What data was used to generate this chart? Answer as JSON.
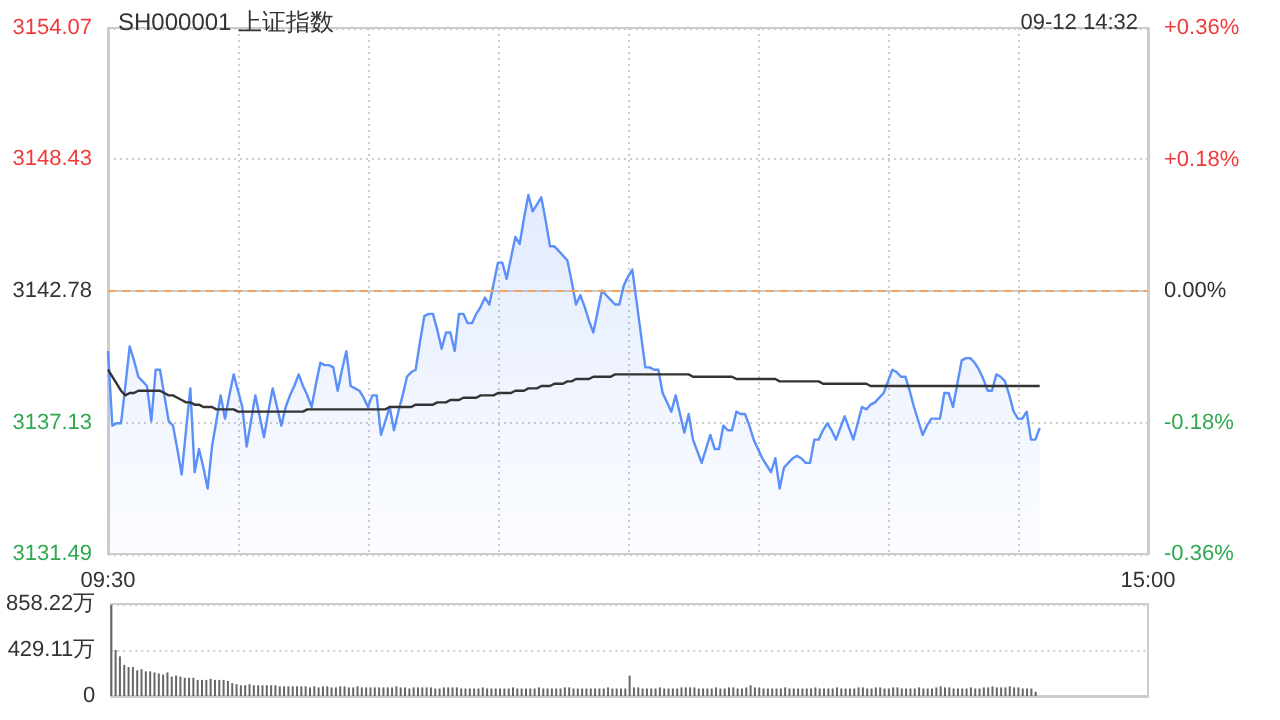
{
  "chart_data": [
    {
      "type": "line",
      "title": "SH000001 上证指数",
      "annotations": [
        "09-12 14:32"
      ],
      "categories": [
        "09:30",
        null,
        null,
        null,
        null,
        null,
        null,
        null,
        null,
        null,
        null,
        null,
        null,
        null,
        null,
        null,
        null,
        null,
        null,
        null,
        null,
        null,
        null,
        null,
        null,
        null,
        null,
        null,
        null,
        null,
        null,
        null,
        null,
        null,
        null,
        null,
        null,
        null,
        null,
        null,
        null,
        null,
        null,
        null,
        null,
        null,
        null,
        null,
        null,
        null,
        null,
        null,
        null,
        null,
        null,
        null,
        null,
        null,
        null,
        null,
        null,
        null,
        null,
        null,
        null,
        null,
        null,
        null,
        null,
        null,
        null,
        null,
        null,
        null,
        null,
        null,
        null,
        null,
        null,
        null,
        null,
        null,
        null,
        null,
        null,
        null,
        null,
        null,
        null,
        null,
        null,
        null,
        null,
        null,
        null,
        null,
        null,
        null,
        null,
        null,
        null,
        null,
        null,
        null,
        null,
        null,
        null,
        null,
        null,
        null,
        null,
        null,
        null,
        null,
        null,
        null,
        null,
        null,
        null,
        null,
        null,
        null,
        null,
        null,
        null,
        null,
        null,
        null,
        null,
        null,
        null,
        null,
        null,
        null,
        null,
        null,
        null,
        null,
        null,
        null,
        null,
        null,
        null,
        null,
        null,
        null,
        null,
        null,
        null,
        null,
        null,
        null,
        null,
        null,
        null,
        null,
        null,
        null,
        null,
        null,
        null,
        null,
        null,
        null,
        null,
        null,
        null,
        null,
        null,
        null,
        null,
        null,
        null,
        null,
        null,
        null,
        null,
        null,
        null,
        null,
        null,
        null,
        null,
        null,
        null,
        null,
        null,
        null,
        null,
        null,
        null,
        null,
        null,
        null,
        null,
        null,
        null,
        null,
        null,
        null,
        null,
        null,
        null,
        null,
        null,
        null,
        null,
        null,
        null,
        null,
        null,
        null,
        null,
        null,
        null,
        null,
        null,
        null,
        null,
        null,
        null,
        null,
        null,
        null,
        null,
        null,
        null,
        null,
        null,
        null,
        null,
        null,
        null,
        null,
        null,
        null,
        null,
        null,
        null,
        null,
        "15:00"
      ],
      "ylim": [
        3131.49,
        3154.07
      ],
      "yticks": [
        3131.49,
        3137.13,
        3142.78,
        3148.43,
        3154.07
      ],
      "y2lim": [
        -0.36,
        0.36
      ],
      "y2ticks": [
        {
          "value": -0.36,
          "label": "-0.36%"
        },
        {
          "value": -0.18,
          "label": "-0.18%"
        },
        {
          "value": 0,
          "label": "0.00%"
        },
        {
          "value": 0.18,
          "label": "+0.18%"
        },
        {
          "value": 0.36,
          "label": "+0.36%"
        }
      ],
      "grid": true,
      "marker": "none",
      "ref_lines": [
        {
          "axis": "y",
          "value": 3142.78,
          "color": "#f4a460",
          "line_style": "dashed"
        }
      ],
      "series": [
        {
          "type": "area",
          "color": "#5b8ff9",
          "values": [
            3140.2,
            3137.0,
            3137.1,
            3137.1,
            3138.7,
            3140.4,
            3139.8,
            3139.1,
            3138.9,
            3138.7,
            3137.2,
            3139.4,
            3139.4,
            3138.3,
            3137.2,
            3137.0,
            3136.0,
            3134.9,
            3136.8,
            3138.6,
            3135.0,
            3136.0,
            3135.2,
            3134.3,
            3136.1,
            3137.2,
            3138.3,
            3137.3,
            3138.3,
            3139.2,
            3138.5,
            3137.8,
            3136.1,
            3137.2,
            3138.3,
            3137.4,
            3136.5,
            3137.6,
            3138.6,
            3137.8,
            3137.0,
            3137.8,
            3138.3,
            3138.7,
            3139.2,
            3138.7,
            3138.3,
            3137.8,
            3138.8,
            3139.7,
            3139.6,
            3139.6,
            3139.5,
            3138.5,
            3139.4,
            3140.2,
            3138.7,
            3138.6,
            3138.5,
            3138.2,
            3137.8,
            3138.3,
            3138.3,
            3136.6,
            3137.2,
            3137.8,
            3136.8,
            3137.6,
            3138.3,
            3139.1,
            3139.3,
            3139.4,
            3140.6,
            3141.7,
            3141.8,
            3141.8,
            3141.1,
            3140.3,
            3141.0,
            3141.0,
            3140.2,
            3141.8,
            3141.8,
            3141.4,
            3141.4,
            3141.8,
            3142.1,
            3142.5,
            3142.2,
            3143.1,
            3144.0,
            3144.0,
            3143.3,
            3144.2,
            3145.1,
            3144.8,
            3145.9,
            3146.9,
            3146.2,
            3146.5,
            3146.8,
            3145.8,
            3144.7,
            3144.7,
            3144.5,
            3144.3,
            3144.1,
            3143.2,
            3142.2,
            3142.6,
            3142.1,
            3141.5,
            3141.0,
            3141.9,
            3142.8,
            3142.6,
            3142.4,
            3142.2,
            3142.2,
            3143.0,
            3143.4,
            3143.7,
            3142.3,
            3140.9,
            3139.5,
            3139.5,
            3139.4,
            3139.4,
            3138.4,
            3138.0,
            3137.6,
            3138.3,
            3137.5,
            3136.7,
            3137.5,
            3136.4,
            3135.9,
            3135.4,
            3136.0,
            3136.6,
            3136.0,
            3136.0,
            3137.0,
            3136.8,
            3136.8,
            3137.6,
            3137.5,
            3137.5,
            3137.0,
            3136.4,
            3136.0,
            3135.6,
            3135.3,
            3135.0,
            3135.6,
            3134.3,
            3135.2,
            3135.4,
            3135.6,
            3135.7,
            3135.6,
            3135.4,
            3135.4,
            3136.4,
            3136.4,
            3136.8,
            3137.1,
            3136.8,
            3136.4,
            3136.9,
            3137.4,
            3136.9,
            3136.4,
            3137.1,
            3137.8,
            3137.7,
            3137.9,
            3138.0,
            3138.2,
            3138.4,
            3138.9,
            3139.4,
            3139.3,
            3139.1,
            3139.1,
            3138.5,
            3137.8,
            3137.2,
            3136.6,
            3137.0,
            3137.3,
            3137.3,
            3137.3,
            3138.4,
            3138.4,
            3137.8,
            3138.8,
            3139.8,
            3139.9,
            3139.9,
            3139.7,
            3139.4,
            3139.0,
            3138.5,
            3138.5,
            3139.2,
            3139.1,
            3138.9,
            3138.3,
            3137.6,
            3137.3,
            3137.3,
            3137.6,
            3136.4,
            3136.4,
            3136.9,
            null,
            null,
            null,
            null,
            null,
            null,
            null,
            null,
            null,
            null,
            null,
            null,
            null,
            null,
            null,
            null,
            null,
            null,
            null,
            null,
            null,
            null,
            null,
            null,
            null
          ]
        },
        {
          "type": "line",
          "color": "#333333",
          "values": [
            3139.4,
            3139.1,
            3138.8,
            3138.5,
            3138.3,
            3138.4,
            3138.4,
            3138.5,
            3138.5,
            3138.5,
            3138.5,
            3138.5,
            3138.5,
            3138.4,
            3138.3,
            3138.3,
            3138.2,
            3138.1,
            3138.0,
            3138.0,
            3137.9,
            3137.9,
            3137.8,
            3137.8,
            3137.8,
            3137.7,
            3137.7,
            3137.7,
            3137.7,
            3137.7,
            3137.6,
            3137.6,
            3137.6,
            3137.6,
            3137.6,
            3137.6,
            3137.6,
            3137.6,
            3137.6,
            3137.6,
            3137.6,
            3137.6,
            3137.6,
            3137.6,
            3137.6,
            3137.6,
            3137.7,
            3137.7,
            3137.7,
            3137.7,
            3137.7,
            3137.7,
            3137.7,
            3137.7,
            3137.7,
            3137.7,
            3137.7,
            3137.7,
            3137.7,
            3137.7,
            3137.7,
            3137.7,
            3137.7,
            3137.7,
            3137.7,
            3137.8,
            3137.8,
            3137.8,
            3137.8,
            3137.8,
            3137.8,
            3137.9,
            3137.9,
            3137.9,
            3137.9,
            3137.9,
            3138.0,
            3138.0,
            3138.0,
            3138.1,
            3138.1,
            3138.1,
            3138.2,
            3138.2,
            3138.2,
            3138.2,
            3138.3,
            3138.3,
            3138.3,
            3138.3,
            3138.4,
            3138.4,
            3138.4,
            3138.4,
            3138.5,
            3138.5,
            3138.5,
            3138.6,
            3138.6,
            3138.6,
            3138.7,
            3138.7,
            3138.7,
            3138.8,
            3138.8,
            3138.8,
            3138.9,
            3138.9,
            3139.0,
            3139.0,
            3139.0,
            3139.0,
            3139.1,
            3139.1,
            3139.1,
            3139.1,
            3139.1,
            3139.2,
            3139.2,
            3139.2,
            3139.2,
            3139.2,
            3139.2,
            3139.2,
            3139.2,
            3139.2,
            3139.2,
            3139.2,
            3139.2,
            3139.2,
            3139.2,
            3139.2,
            3139.2,
            3139.2,
            3139.2,
            3139.1,
            3139.1,
            3139.1,
            3139.1,
            3139.1,
            3139.1,
            3139.1,
            3139.1,
            3139.1,
            3139.1,
            3139.0,
            3139.0,
            3139.0,
            3139.0,
            3139.0,
            3139.0,
            3139.0,
            3139.0,
            3139.0,
            3139.0,
            3138.9,
            3138.9,
            3138.9,
            3138.9,
            3138.9,
            3138.9,
            3138.9,
            3138.9,
            3138.9,
            3138.9,
            3138.8,
            3138.8,
            3138.8,
            3138.8,
            3138.8,
            3138.8,
            3138.8,
            3138.8,
            3138.8,
            3138.8,
            3138.8,
            3138.7,
            3138.7,
            3138.7,
            3138.7,
            3138.7,
            3138.7,
            3138.7,
            3138.7,
            3138.7,
            3138.7,
            3138.7,
            3138.7,
            3138.7,
            3138.7,
            3138.7,
            3138.7,
            3138.7,
            3138.7,
            3138.7,
            3138.7,
            3138.7,
            3138.7,
            3138.7,
            3138.7,
            3138.7,
            3138.7,
            3138.7,
            3138.7,
            3138.7,
            3138.7,
            3138.7,
            3138.7,
            3138.7,
            3138.7,
            3138.7,
            3138.7,
            3138.7,
            3138.7,
            3138.7,
            3138.7,
            null,
            null,
            null,
            null,
            null,
            null,
            null,
            null,
            null,
            null,
            null,
            null,
            null,
            null,
            null,
            null,
            null,
            null,
            null,
            null,
            null,
            null,
            null,
            null,
            null
          ]
        }
      ]
    },
    {
      "type": "bar",
      "color": "#666666",
      "ylim": [
        0,
        858.22
      ],
      "categories": [
        null,
        null,
        null,
        null,
        null,
        null,
        null,
        null,
        null,
        null,
        null,
        null,
        null,
        null,
        null,
        null,
        null,
        null,
        null,
        null,
        null,
        null,
        null,
        null,
        null,
        null,
        null,
        null,
        null,
        null,
        null,
        null,
        null,
        null,
        null,
        null,
        null,
        null,
        null,
        null,
        null,
        null,
        null,
        null,
        null,
        null,
        null,
        null,
        null,
        null,
        null,
        null,
        null,
        null,
        null,
        null,
        null,
        null,
        null,
        null,
        null,
        null,
        null,
        null,
        null,
        null,
        null,
        null,
        null,
        null,
        null,
        null,
        null,
        null,
        null,
        null,
        null,
        null,
        null,
        null,
        null,
        null,
        null,
        null,
        null,
        null,
        null,
        null,
        null,
        null,
        null,
        null,
        null,
        null,
        null,
        null,
        null,
        null,
        null,
        null,
        null,
        null,
        null,
        null,
        null,
        null,
        null,
        null,
        null,
        null,
        null,
        null,
        null,
        null,
        null,
        null,
        null,
        null,
        null,
        null,
        null,
        null,
        null,
        null,
        null,
        null,
        null,
        null,
        null,
        null,
        null,
        null,
        null,
        null,
        null,
        null,
        null,
        null,
        null,
        null,
        null,
        null,
        null,
        null,
        null,
        null,
        null,
        null,
        null,
        null,
        null,
        null,
        null,
        null,
        null,
        null,
        null,
        null,
        null,
        null,
        null,
        null,
        null,
        null,
        null,
        null,
        null,
        null,
        null,
        null,
        null,
        null,
        null,
        null,
        null,
        null,
        null,
        null,
        null,
        null,
        null,
        null,
        null,
        null,
        null,
        null,
        null,
        null,
        null,
        null,
        null,
        null,
        null,
        null,
        null,
        null,
        null,
        null,
        null,
        null,
        null,
        null,
        null,
        null,
        null,
        null,
        null,
        null,
        null,
        null,
        null,
        null,
        null,
        null,
        null,
        null,
        null,
        null,
        null,
        null,
        null,
        null,
        null,
        null,
        null,
        null,
        null,
        null,
        null,
        null,
        null,
        null,
        null,
        null,
        null,
        null,
        null,
        null,
        null,
        null,
        null
      ],
      "yticks": [
        0,
        {
          "value": 429.11,
          "label": "429.11万"
        },
        {
          "value": 858.22,
          "label": "858.22万"
        }
      ],
      "tick_labels": "y",
      "grid": "y",
      "values": [
        850,
        430,
        370,
        290,
        270,
        270,
        240,
        250,
        230,
        230,
        220,
        210,
        200,
        220,
        180,
        190,
        180,
        170,
        170,
        170,
        150,
        150,
        150,
        160,
        150,
        150,
        150,
        140,
        120,
        110,
        100,
        100,
        110,
        100,
        100,
        100,
        100,
        100,
        100,
        90,
        90,
        90,
        90,
        90,
        90,
        90,
        80,
        90,
        80,
        90,
        90,
        80,
        80,
        90,
        90,
        80,
        80,
        90,
        80,
        80,
        80,
        80,
        80,
        80,
        80,
        80,
        90,
        80,
        80,
        70,
        80,
        80,
        80,
        80,
        80,
        70,
        70,
        80,
        80,
        80,
        80,
        70,
        70,
        70,
        70,
        70,
        80,
        70,
        70,
        70,
        70,
        70,
        70,
        80,
        70,
        70,
        70,
        70,
        70,
        80,
        70,
        70,
        70,
        70,
        70,
        80,
        80,
        70,
        70,
        70,
        70,
        70,
        70,
        70,
        70,
        80,
        70,
        70,
        70,
        70,
        190,
        80,
        80,
        70,
        70,
        70,
        70,
        80,
        70,
        70,
        70,
        70,
        80,
        80,
        80,
        80,
        70,
        70,
        70,
        70,
        80,
        70,
        70,
        80,
        80,
        70,
        70,
        80,
        100,
        80,
        80,
        70,
        70,
        70,
        70,
        70,
        80,
        70,
        70,
        70,
        70,
        70,
        70,
        80,
        70,
        70,
        70,
        70,
        80,
        70,
        70,
        70,
        70,
        80,
        80,
        70,
        70,
        80,
        80,
        70,
        70,
        80,
        80,
        70,
        70,
        70,
        70,
        80,
        70,
        70,
        70,
        80,
        90,
        80,
        80,
        70,
        70,
        70,
        70,
        80,
        70,
        70,
        80,
        80,
        90,
        80,
        80,
        80,
        90,
        80,
        80,
        70,
        70,
        70,
        40,
        null,
        null,
        null,
        null,
        null,
        null,
        null,
        null,
        null,
        null,
        null,
        null,
        null,
        null,
        null,
        null,
        null,
        null,
        null,
        null,
        null,
        null,
        null,
        null,
        null,
        null
      ]
    }
  ]
}
